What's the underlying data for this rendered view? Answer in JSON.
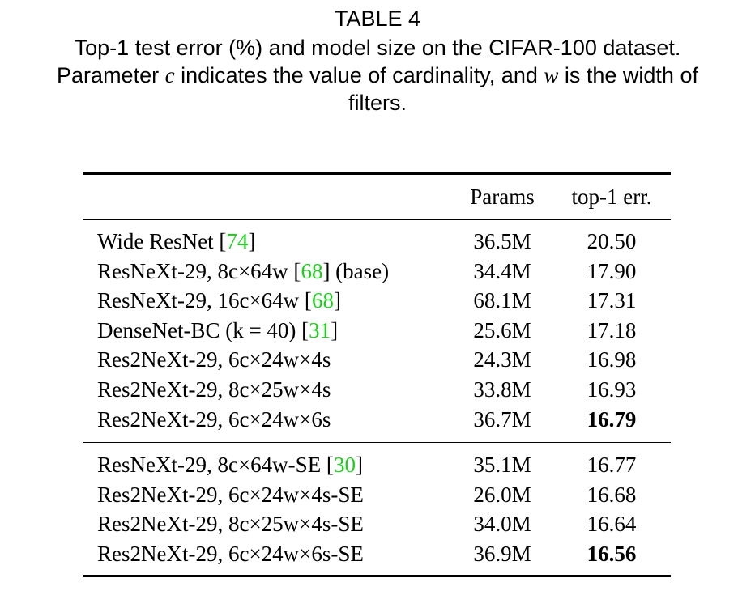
{
  "caption": {
    "label": "TABLE 4",
    "parts": [
      "Top-1 test error (%) and model size on the CIFAR-100 dataset.",
      "Parameter ",
      "c",
      " indicates the value of cardinality, and ",
      "w",
      " is the width of",
      "filters."
    ]
  },
  "table": {
    "header": [
      "Params",
      "top-1 err."
    ],
    "groups": [
      {
        "rows": [
          {
            "name": [
              "Wide ResNet [",
              "74",
              "]"
            ],
            "params": "36.5M",
            "error": "20.50"
          },
          {
            "name": [
              "ResNeXt-29, 8c×64w [",
              "68",
              "] (base)"
            ],
            "params": "34.4M",
            "error": "17.90"
          },
          {
            "name": [
              "ResNeXt-29, 16c×64w [",
              "68",
              "]"
            ],
            "params": "68.1M",
            "error": "17.31"
          },
          {
            "name": [
              "DenseNet-BC (k = 40) [",
              "31",
              "]"
            ],
            "params": "25.6M",
            "error": "17.18"
          },
          {
            "name": [
              "Res2NeXt-29, 6c×24w×4s"
            ],
            "params": "24.3M",
            "error": "16.98"
          },
          {
            "name": [
              "Res2NeXt-29, 8c×25w×4s"
            ],
            "params": "33.8M",
            "error": "16.93"
          },
          {
            "name": [
              "Res2NeXt-29, 6c×24w×6s"
            ],
            "params": "36.7M",
            "error": "16.79",
            "best": true
          }
        ]
      },
      {
        "rows": [
          {
            "name": [
              "ResNeXt-29, 8c×64w-SE [",
              "30",
              "]"
            ],
            "params": "35.1M",
            "error": "16.77"
          },
          {
            "name": [
              "Res2NeXt-29, 6c×24w×4s-SE"
            ],
            "params": "26.0M",
            "error": "16.68"
          },
          {
            "name": [
              "Res2NeXt-29, 8c×25w×4s-SE"
            ],
            "params": "34.0M",
            "error": "16.64"
          },
          {
            "name": [
              "Res2NeXt-29, 6c×24w×6s-SE"
            ],
            "params": "36.9M",
            "error": "16.56",
            "best": true
          }
        ]
      }
    ]
  }
}
